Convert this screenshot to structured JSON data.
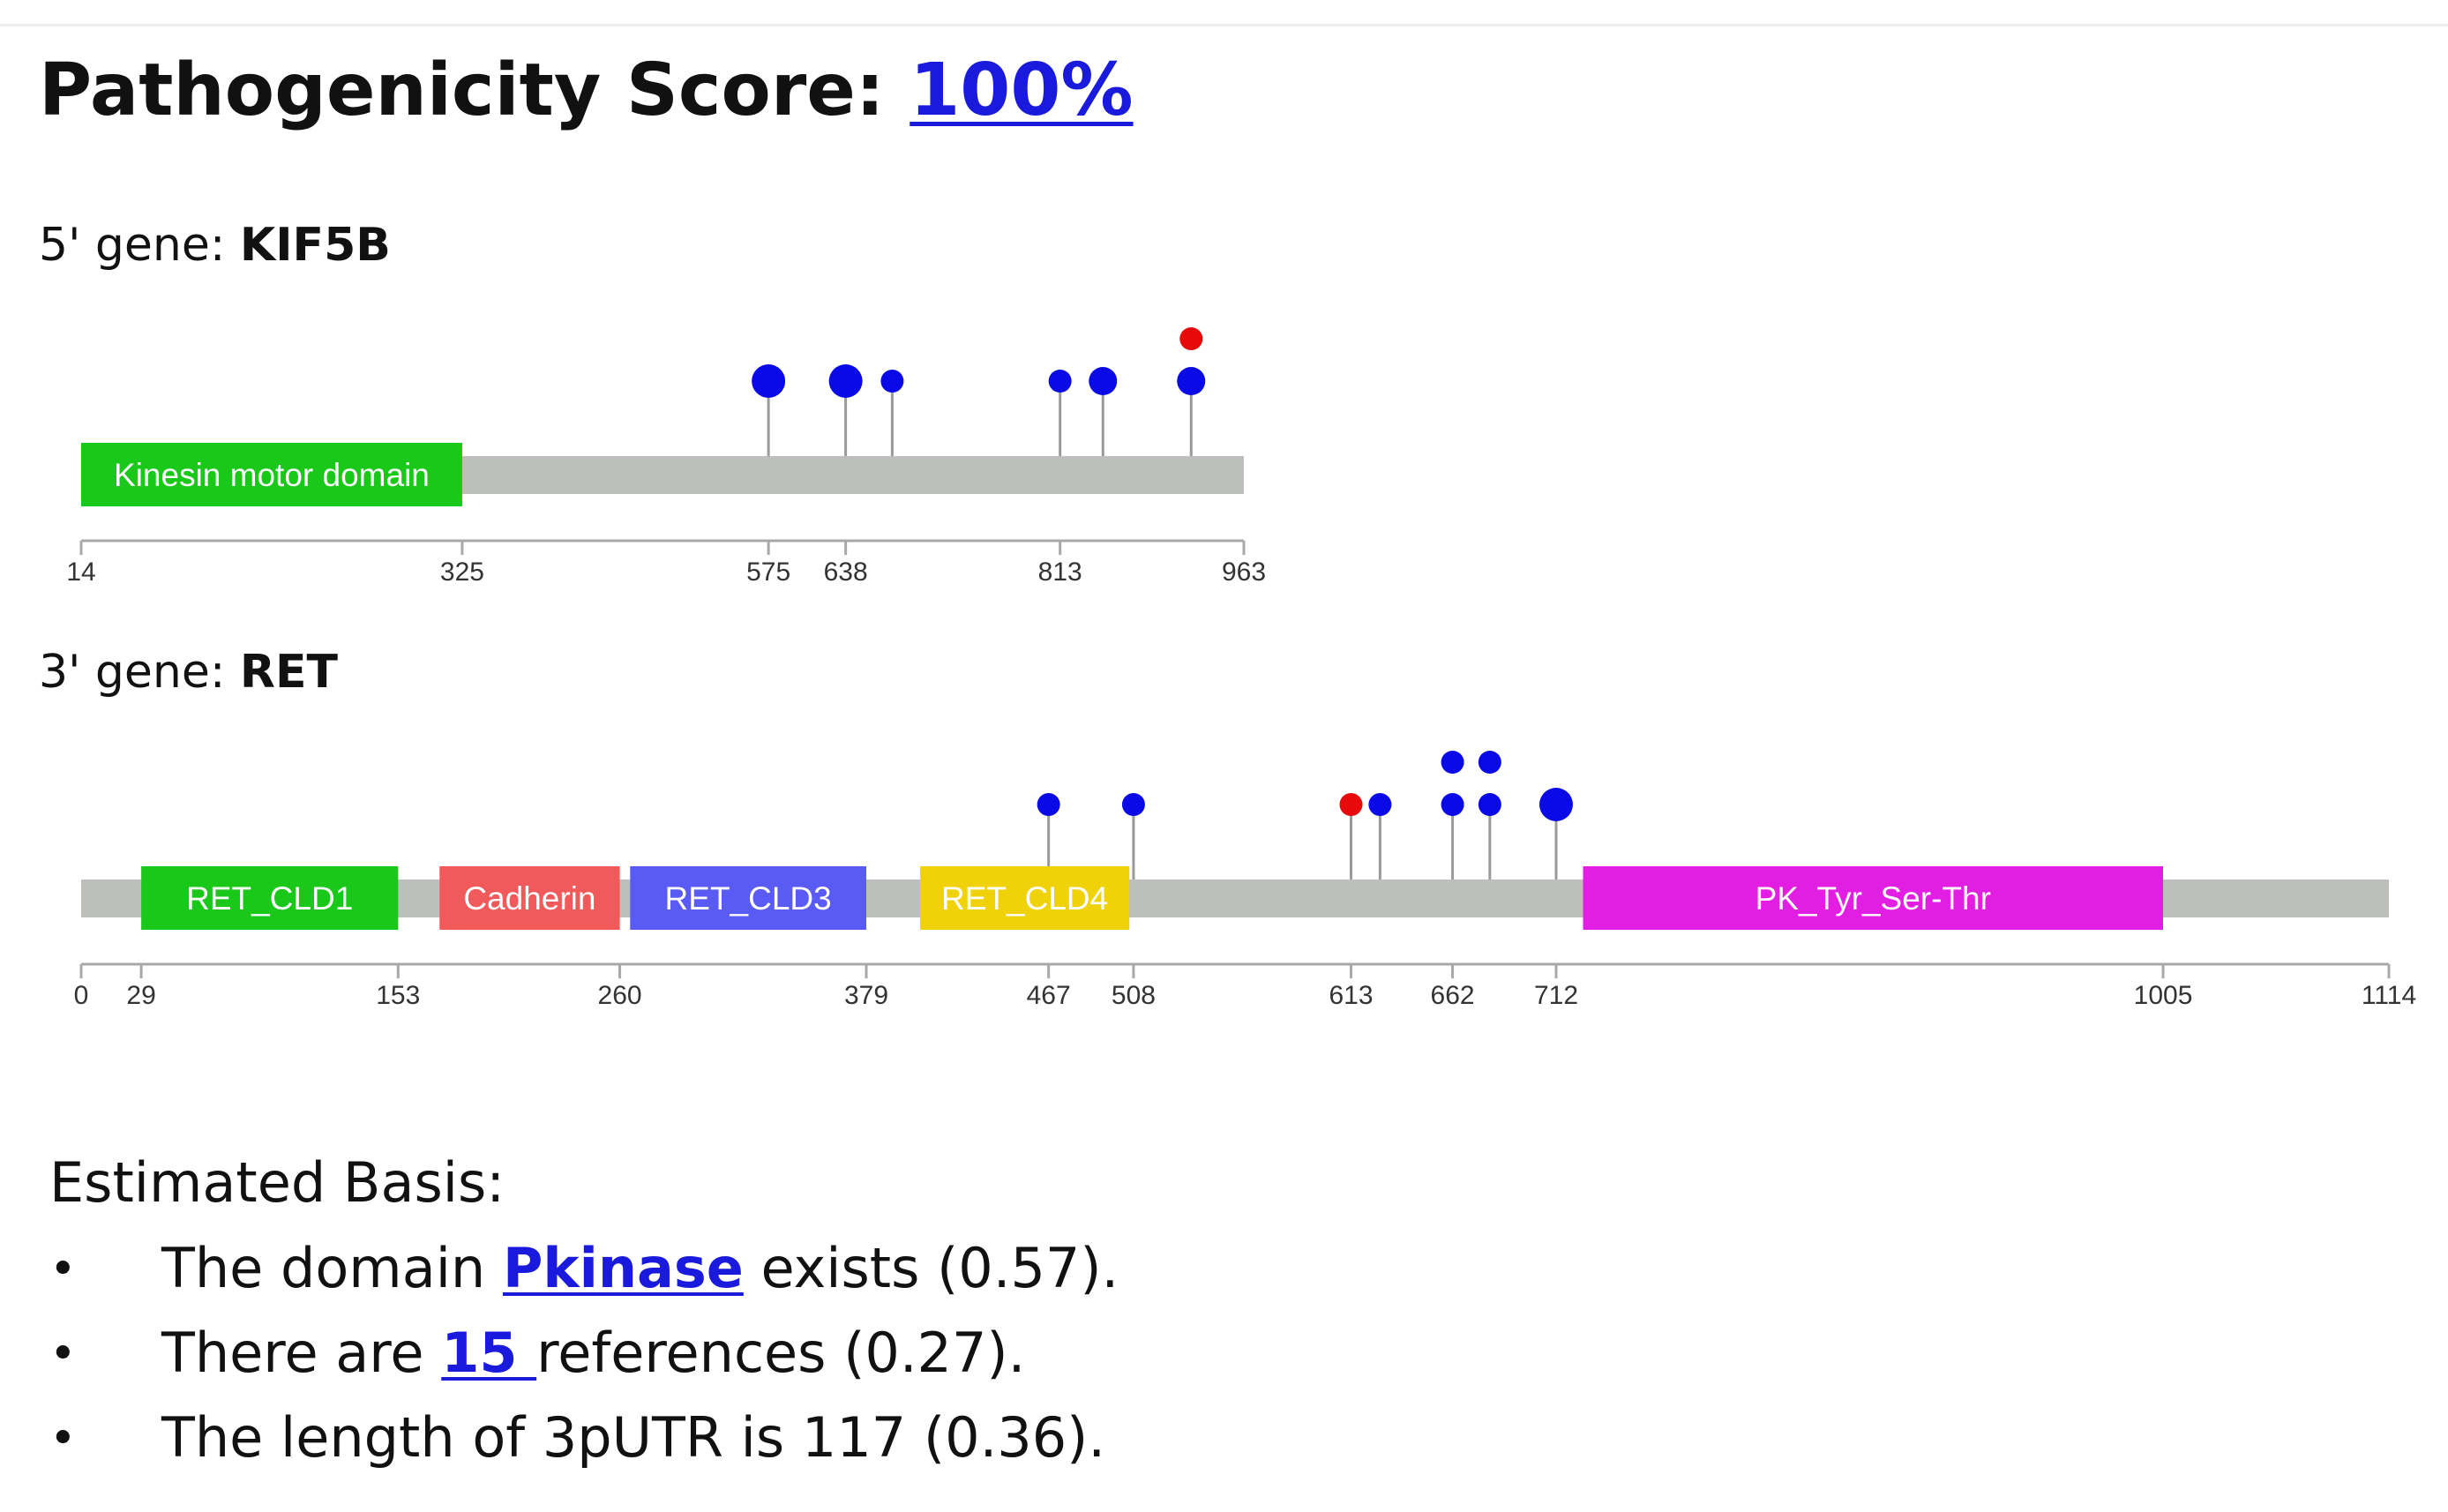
{
  "score": {
    "label": "Pathogenicity Score: ",
    "value": "100%"
  },
  "genes": {
    "five_prime": {
      "prefix": "5' gene: ",
      "name": "KIF5B"
    },
    "three_prime": {
      "prefix": "3' gene: ",
      "name": "RET"
    }
  },
  "basis": {
    "title": "Estimated Basis:",
    "items": [
      {
        "bullet": "•",
        "pre": "The domain ",
        "link": "Pkinase",
        "post": " exists (0.57)."
      },
      {
        "bullet": "•",
        "pre": "There are ",
        "link": "15 ",
        "post": "references (0.27)."
      },
      {
        "bullet": "•",
        "pre": "The length of 3pUTR is 117 (0.36).",
        "link": "",
        "post": ""
      }
    ]
  },
  "chart_data": [
    {
      "type": "lollipop",
      "gene": "KIF5B",
      "range": [
        14,
        963
      ],
      "ticks": [
        14,
        325,
        575,
        638,
        813,
        963
      ],
      "domains": [
        {
          "name": "Kinesin motor domain",
          "start": 14,
          "end": 325,
          "color": "#19c819"
        }
      ],
      "mutations": [
        {
          "pos": 575,
          "stack": [
            {
              "size": "large",
              "color": "#0a0ae6"
            }
          ]
        },
        {
          "pos": 638,
          "stack": [
            {
              "size": "large",
              "color": "#0a0ae6"
            }
          ]
        },
        {
          "pos": 676,
          "stack": [
            {
              "size": "small",
              "color": "#0a0ae6"
            }
          ]
        },
        {
          "pos": 813,
          "stack": [
            {
              "size": "small",
              "color": "#0a0ae6"
            }
          ]
        },
        {
          "pos": 848,
          "stack": [
            {
              "size": "medium",
              "color": "#0a0ae6"
            }
          ]
        },
        {
          "pos": 920,
          "stack": [
            {
              "size": "medium",
              "color": "#0a0ae6"
            },
            {
              "size": "small",
              "color": "#e60a0a"
            }
          ]
        }
      ]
    },
    {
      "type": "lollipop",
      "gene": "RET",
      "range": [
        0,
        1114
      ],
      "ticks": [
        0,
        29,
        153,
        260,
        379,
        467,
        508,
        613,
        662,
        712,
        1005,
        1114
      ],
      "domains": [
        {
          "name": "RET_CLD1",
          "start": 29,
          "end": 153,
          "color": "#19c819"
        },
        {
          "name": "Cadherin",
          "start": 173,
          "end": 260,
          "color": "#f05a5a"
        },
        {
          "name": "RET_CLD3",
          "start": 265,
          "end": 379,
          "color": "#5a5af5"
        },
        {
          "name": "RET_CLD4",
          "start": 405,
          "end": 506,
          "color": "#f0d20a"
        },
        {
          "name": "PK_Tyr_Ser-Thr",
          "start": 725,
          "end": 1005,
          "color": "#e11ee1"
        }
      ],
      "mutations": [
        {
          "pos": 467,
          "stack": [
            {
              "size": "small",
              "color": "#0a0ae6"
            }
          ]
        },
        {
          "pos": 508,
          "stack": [
            {
              "size": "small",
              "color": "#0a0ae6"
            }
          ]
        },
        {
          "pos": 613,
          "stack": [
            {
              "size": "small",
              "color": "#e60a0a"
            }
          ]
        },
        {
          "pos": 627,
          "stack": [
            {
              "size": "small",
              "color": "#0a0ae6"
            }
          ]
        },
        {
          "pos": 662,
          "stack": [
            {
              "size": "small",
              "color": "#0a0ae6"
            },
            {
              "size": "small",
              "color": "#0a0ae6"
            }
          ]
        },
        {
          "pos": 680,
          "stack": [
            {
              "size": "small",
              "color": "#0a0ae6"
            },
            {
              "size": "small",
              "color": "#0a0ae6"
            }
          ]
        },
        {
          "pos": 712,
          "stack": [
            {
              "size": "large",
              "color": "#0a0ae6"
            }
          ]
        }
      ]
    }
  ]
}
